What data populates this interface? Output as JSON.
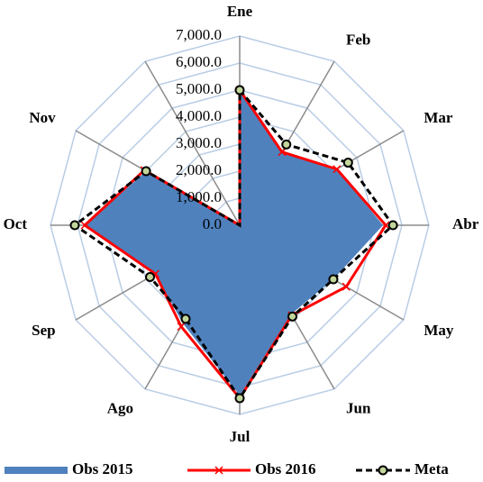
{
  "chart_data": {
    "type": "radar",
    "categories": [
      "Ene",
      "Feb",
      "Mar",
      "Abr",
      "May",
      "Jun",
      "Jul",
      "Ago",
      "Sep",
      "Oct",
      "Nov"
    ],
    "ylim": [
      0,
      7000
    ],
    "yticks": [
      {
        "value": 0,
        "label": "0.0"
      },
      {
        "value": 1000,
        "label": "1,000.0"
      },
      {
        "value": 2000,
        "label": "2,000.0"
      },
      {
        "value": 3000,
        "label": "3,000.0"
      },
      {
        "value": 4000,
        "label": "4,000.0"
      },
      {
        "value": 5000,
        "label": "5,000.0"
      },
      {
        "value": 6000,
        "label": "6,000.0"
      },
      {
        "value": 7000,
        "label": "7,000.0"
      }
    ],
    "grid": true,
    "series": [
      {
        "name": "Obs 2015",
        "color": "#4f81bd",
        "style": "area",
        "values": [
          5000,
          3100,
          4150,
          5300,
          4000,
          3800,
          6300,
          4200,
          3600,
          5700,
          4000
        ]
      },
      {
        "name": "Obs 2016",
        "color": "#ff0000",
        "style": "line-x",
        "values": [
          5000,
          3130,
          4150,
          5400,
          4550,
          3850,
          6400,
          4330,
          3600,
          5730,
          4070
        ]
      },
      {
        "name": "Meta",
        "color": "#000000",
        "style": "dashed-circle",
        "values": [
          5000,
          3450,
          4630,
          5670,
          4000,
          3900,
          6400,
          4000,
          3830,
          6100,
          4000
        ]
      }
    ]
  }
}
